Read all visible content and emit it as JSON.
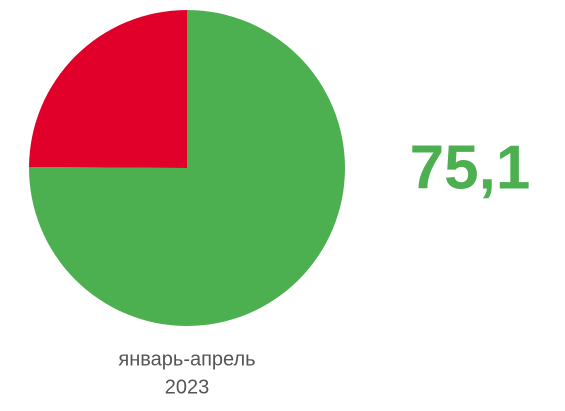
{
  "chart_data": {
    "type": "pie",
    "values": [
      75.1,
      24.9
    ],
    "value_labels": [
      "75,1",
      null
    ],
    "colors": [
      "#4caf50",
      "#e0002a"
    ],
    "caption": [
      "январь-апрель",
      "2023"
    ]
  }
}
